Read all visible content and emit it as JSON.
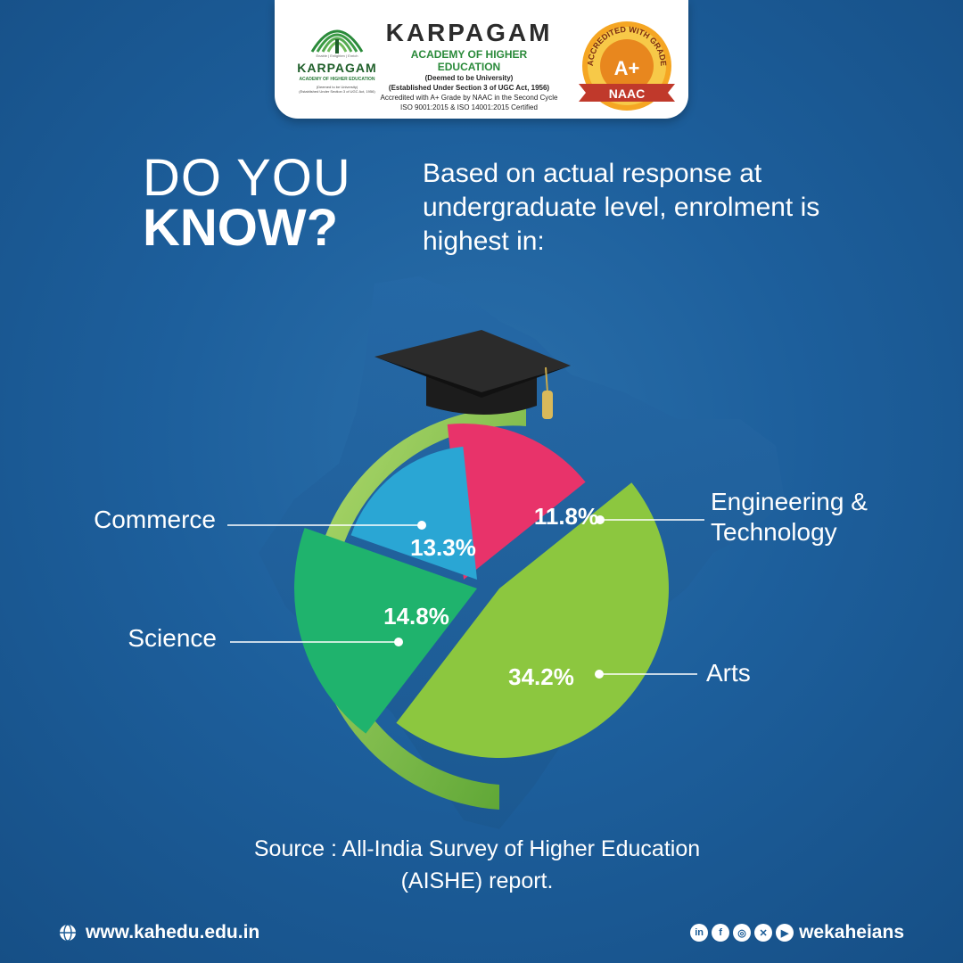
{
  "header": {
    "logo_name": "KARPAGAM",
    "logo_tagline": "Enable | Enlighten | Enrich",
    "logo_sub": "ACADEMY OF HIGHER EDUCATION",
    "logo_tiny1": "(Deemed to be University)",
    "logo_tiny2": "(Established Under Section 3 of UGC Act, 1956)",
    "brand_title": "KARPAGAM",
    "brand_subtitle": "ACADEMY OF HIGHER EDUCATION",
    "line1": "(Deemed to be University)",
    "line2": "(Established Under Section 3 of UGC Act, 1956)",
    "line3": "Accredited with A+ Grade by NAAC in the Second Cycle",
    "line4": "ISO 9001:2015 & ISO 14001:2015 Certified",
    "badge_arc": "ACCREDITED WITH GRADE",
    "badge_grade": "A+",
    "badge_ribbon": "NAAC"
  },
  "headline": {
    "line1": "DO YOU",
    "line2": "KNOW?",
    "intro": "Based on actual response at undergraduate level, enrolment is highest in:"
  },
  "chart_data": {
    "type": "pie",
    "title": "",
    "slices": [
      {
        "label": "Engineering & Technology",
        "label_lines": [
          "Engineering &",
          "Technology"
        ],
        "value": 11.8,
        "value_label": "11.8%",
        "color": "#e8336a"
      },
      {
        "label": "Commerce",
        "label_lines": [
          "Commerce"
        ],
        "value": 13.3,
        "value_label": "13.3%",
        "color": "#2aa6d4"
      },
      {
        "label": "Science",
        "label_lines": [
          "Science"
        ],
        "value": 14.8,
        "value_label": "14.8%",
        "color": "#1fb36d"
      },
      {
        "label": "Arts",
        "label_lines": [
          "Arts"
        ],
        "value": 34.2,
        "value_label": "34.2%",
        "color": "#8cc73f"
      }
    ]
  },
  "source": {
    "line1": "Source : All-India Survey of Higher Education",
    "line2": "(AISHE) report."
  },
  "footer": {
    "url": "www.kahedu.edu.in",
    "handle": "wekaheians",
    "social_icons": [
      "linkedin-icon",
      "facebook-icon",
      "instagram-icon",
      "x-icon",
      "youtube-icon"
    ]
  }
}
